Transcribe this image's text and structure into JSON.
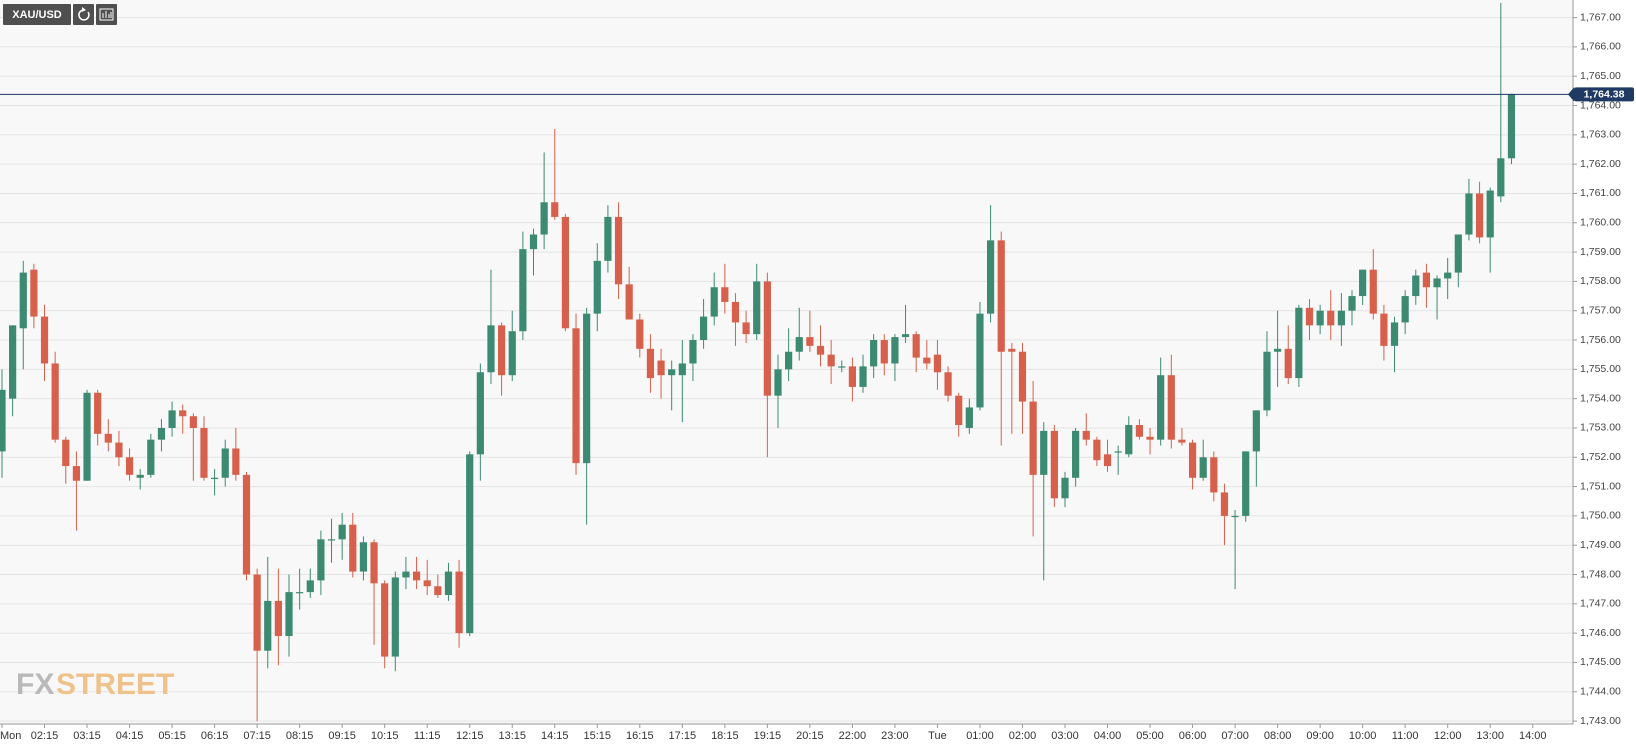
{
  "symbol": "XAU/USD",
  "watermark": {
    "prefix": "FX",
    "suffix": "STREET"
  },
  "chart_data": {
    "type": "candlestick",
    "up_color": "#3b8a71",
    "down_color": "#d6604b",
    "grid": true,
    "categories": [
      "Mon",
      null,
      null,
      null,
      "02:15",
      null,
      null,
      null,
      "03:15",
      null,
      null,
      null,
      "04:15",
      null,
      null,
      null,
      "05:15",
      null,
      null,
      null,
      "06:15",
      null,
      null,
      null,
      "07:15",
      null,
      null,
      null,
      "08:15",
      null,
      null,
      null,
      "09:15",
      null,
      null,
      null,
      "10:15",
      null,
      null,
      null,
      "11:15",
      null,
      null,
      null,
      "12:15",
      null,
      null,
      null,
      "13:15",
      null,
      null,
      null,
      "14:15",
      null,
      null,
      null,
      "15:15",
      null,
      null,
      null,
      "16:15",
      null,
      null,
      null,
      "17:15",
      null,
      null,
      null,
      "18:15",
      null,
      null,
      null,
      "19:15",
      null,
      null,
      null,
      "20:15",
      null,
      null,
      null,
      "22:00",
      null,
      null,
      null,
      "23:00",
      null,
      null,
      null,
      "Tue",
      null,
      null,
      null,
      "01:00",
      null,
      null,
      null,
      "02:00",
      null,
      null,
      null,
      "03:00",
      null,
      null,
      null,
      "04:00",
      null,
      null,
      null,
      "05:00",
      null,
      null,
      null,
      "06:00",
      null,
      null,
      null,
      "07:00",
      null,
      null,
      null,
      "08:00",
      null,
      null,
      null,
      "09:00",
      null,
      null,
      null,
      "10:00",
      null,
      null,
      null,
      "11:00",
      null,
      null,
      null,
      "12:00",
      null,
      null,
      null,
      "13:00",
      null,
      null,
      null,
      "14:00"
    ],
    "open": [
      1752.2,
      1754,
      1756.4,
      1758.4,
      1756.8,
      1755.2,
      1752.6,
      1751.7,
      1751.2,
      1754.2,
      1752.8,
      1752.5,
      1752,
      1751.3,
      1751.4,
      1752.6,
      1753,
      1753.6,
      1753.4,
      1753,
      1751.3,
      1751.3,
      1752.3,
      1751.4,
      1748,
      1745.4,
      1747.1,
      1745.9,
      1747.4,
      1747.4,
      1747.8,
      1749.2,
      1749.2,
      1749.7,
      1748.1,
      1749.1,
      1747.7,
      1745.2,
      1747.9,
      1748.1,
      1747.8,
      1747.6,
      1747.3,
      1748.1,
      1746,
      1752.1,
      1754.9,
      1756.5,
      1754.8,
      1756.3,
      1759.1,
      1759.6,
      1760.7,
      1760.2,
      1756.4,
      1751.8,
      1756.9,
      1758.7,
      1760.2,
      1757.9,
      1756.7,
      1755.7,
      1755.3,
      1754.8,
      1754.8,
      1755.2,
      1756,
      1756.8,
      1757.8,
      1757.3,
      1756.6,
      1756.2,
      1758,
      1754.1,
      1755,
      1755.6,
      1756.1,
      1755.8,
      1755.5,
      1755.1,
      1755.1,
      1754.4,
      1755.1,
      1756,
      1755.2,
      1756.1,
      1756.2,
      1755.4,
      1755.5,
      1754.9,
      1754.1,
      1753,
      1753.7,
      1756.9,
      1759.4,
      1755.7,
      1755.6,
      1753.9,
      1751.4,
      1752.9,
      1750.6,
      1751.3,
      1752.9,
      1752.6,
      1752.1,
      1752.2,
      1752.1,
      1753.1,
      1752.7,
      1752.6,
      1754.8,
      1752.6,
      1752.5,
      1751.3,
      1752,
      1750.8,
      1750,
      1750,
      1752.2,
      1753.6,
      1755.6,
      1755.7,
      1754.7,
      1757.1,
      1756.5,
      1757,
      1756.5,
      1757,
      1757.5,
      1758.4,
      1756.9,
      1755.8,
      1756.6,
      1757.5,
      1758.3,
      1757.8,
      1758.1,
      1758.3,
      1759.6,
      1761,
      1759.5,
      1760.9,
      1762.2,
      null,
      null
    ],
    "high": [
      1755,
      1756.5,
      1758.7,
      1758.6,
      1757.2,
      1755.6,
      1752.7,
      1752.2,
      1754.3,
      1754.3,
      1753.3,
      1752.9,
      1752.3,
      1751.6,
      1752.8,
      1753.3,
      1753.9,
      1753.8,
      1753.5,
      1753.4,
      1751.6,
      1752.6,
      1753,
      1751.5,
      1748.2,
      1748.6,
      1748.2,
      1748,
      1748.2,
      1748.2,
      1749.5,
      1749.9,
      1750.1,
      1750.1,
      1749.3,
      1749.2,
      1747.8,
      1748.1,
      1748.6,
      1748.6,
      1748.5,
      1748,
      1748.4,
      1748.5,
      1752.2,
      1755.2,
      1758.4,
      1756.6,
      1757,
      1759.7,
      1759.8,
      1762.4,
      1763.2,
      1760.3,
      1756.9,
      1757.1,
      1759.3,
      1760.6,
      1760.7,
      1758.5,
      1756.9,
      1756.2,
      1755.7,
      1755.3,
      1756,
      1756.2,
      1757.4,
      1758.3,
      1758.6,
      1757.6,
      1757,
      1758.6,
      1758.3,
      1755.5,
      1756.4,
      1757.1,
      1757,
      1756.5,
      1756,
      1755.3,
      1755.4,
      1755.5,
      1756.2,
      1756.2,
      1756.2,
      1757.2,
      1756.3,
      1756,
      1756,
      1755.1,
      1754.2,
      1754,
      1757.3,
      1760.6,
      1759.7,
      1755.9,
      1755.9,
      1754.6,
      1753.2,
      1753.1,
      1751.5,
      1753,
      1753.5,
      1752.7,
      1752.6,
      1752.4,
      1753.4,
      1753.3,
      1753,
      1755.4,
      1755.5,
      1753,
      1752.6,
      1752.6,
      1752.2,
      1751.1,
      1750.2,
      1752.2,
      1753.6,
      1756.3,
      1757,
      1756.5,
      1757.2,
      1757.4,
      1757.2,
      1757.7,
      1757.6,
      1757.7,
      1758.4,
      1759.1,
      1757.2,
      1756.8,
      1757.7,
      1758.4,
      1758.6,
      1758.2,
      1758.8,
      1759.6,
      1761.5,
      1761.4,
      1761.2,
      1767.5,
      1764.4,
      null,
      null
    ],
    "low": [
      1751.3,
      1753.4,
      1755,
      1756.4,
      1754.6,
      1752.5,
      1751.1,
      1749.5,
      1751.2,
      1752.4,
      1752.2,
      1751.7,
      1751.2,
      1750.9,
      1751.3,
      1752.2,
      1752.7,
      1752.8,
      1751.2,
      1751.2,
      1750.7,
      1751,
      1751.2,
      1747.8,
      1743,
      1744.8,
      1744.9,
      1745.2,
      1746.8,
      1747.2,
      1747.3,
      1748.4,
      1748.5,
      1747.9,
      1747.8,
      1745.6,
      1744.8,
      1744.7,
      1747.5,
      1747.5,
      1747.3,
      1747.2,
      1747.1,
      1745.5,
      1745.9,
      1751.2,
      1754.5,
      1754.1,
      1754.6,
      1756,
      1758.2,
      1759.1,
      1760.1,
      1756.3,
      1751.4,
      1749.7,
      1756.3,
      1758.3,
      1757.4,
      1756.7,
      1755.4,
      1754.2,
      1754,
      1753.6,
      1753.2,
      1754.6,
      1755.7,
      1756.5,
      1756.9,
      1755.8,
      1755.9,
      1756,
      1752,
      1753,
      1754.6,
      1755.3,
      1755.6,
      1755.1,
      1754.5,
      1754.9,
      1753.9,
      1754.2,
      1754.7,
      1754.8,
      1754.6,
      1755.9,
      1754.9,
      1755,
      1754.3,
      1753.9,
      1752.7,
      1752.8,
      1753.6,
      1756.6,
      1752.4,
      1752.8,
      1752.8,
      1749.3,
      1747.8,
      1750.3,
      1750.3,
      1751,
      1752.4,
      1751.7,
      1751.5,
      1751.4,
      1752,
      1752.6,
      1752.1,
      1752.4,
      1752.3,
      1752.4,
      1750.9,
      1751.2,
      1750.5,
      1749,
      1747.5,
      1749.8,
      1751,
      1753.4,
      1754.4,
      1754.5,
      1754.4,
      1756,
      1756.2,
      1756,
      1755.8,
      1756.5,
      1757.2,
      1756.7,
      1755.3,
      1754.9,
      1756.2,
      1757.2,
      1757.1,
      1756.7,
      1757.4,
      1757.8,
      1759.4,
      1759.3,
      1758.3,
      1760.7,
      1762,
      null,
      null
    ],
    "close": [
      1754.3,
      1756.5,
      1758.3,
      1756.8,
      1755.2,
      1752.6,
      1751.7,
      1751.2,
      1754.2,
      1752.8,
      1752.5,
      1752,
      1751.4,
      1751.4,
      1752.6,
      1753,
      1753.6,
      1753.4,
      1753,
      1751.3,
      1751.3,
      1752.3,
      1751.4,
      1748,
      1745.4,
      1747.1,
      1745.9,
      1747.4,
      1747.4,
      1747.8,
      1749.2,
      1749.2,
      1749.7,
      1748.1,
      1749.1,
      1747.7,
      1745.2,
      1747.9,
      1748.1,
      1747.8,
      1747.6,
      1747.3,
      1748.1,
      1746,
      1752.1,
      1754.9,
      1756.5,
      1754.8,
      1756.3,
      1759.1,
      1759.6,
      1760.7,
      1760.2,
      1756.4,
      1751.8,
      1756.9,
      1758.7,
      1760.2,
      1757.9,
      1756.7,
      1755.7,
      1754.7,
      1754.8,
      1755,
      1755.2,
      1756,
      1756.8,
      1757.8,
      1757.3,
      1756.6,
      1756.2,
      1758,
      1754.1,
      1755,
      1755.6,
      1756.1,
      1755.8,
      1755.5,
      1755.1,
      1755.1,
      1754.4,
      1755.1,
      1756,
      1755.2,
      1756.1,
      1756.2,
      1755.4,
      1755.2,
      1754.9,
      1754.1,
      1753.1,
      1753.7,
      1756.9,
      1759.4,
      1755.6,
      1755.6,
      1753.9,
      1751.4,
      1752.9,
      1750.6,
      1751.3,
      1752.9,
      1752.6,
      1751.9,
      1751.7,
      1752.2,
      1753.1,
      1752.7,
      1752.6,
      1754.8,
      1752.6,
      1752.5,
      1751.3,
      1752,
      1750.8,
      1750,
      1750,
      1752.2,
      1753.6,
      1755.6,
      1755.7,
      1754.7,
      1757.1,
      1756.5,
      1757,
      1756.5,
      1757,
      1757.5,
      1758.4,
      1756.9,
      1755.8,
      1756.6,
      1757.5,
      1758.2,
      1757.8,
      1758.1,
      1758.3,
      1759.6,
      1761,
      1759.5,
      1761.1,
      1762.2,
      1764.38,
      null,
      null
    ],
    "last_price": {
      "value": 1764.38,
      "label": "1,764.38"
    },
    "ylim": [
      1742.9,
      1767.6
    ],
    "yticks": [
      {
        "value": 1743,
        "label": "1,743.00"
      },
      {
        "value": 1744,
        "label": "1,744.00"
      },
      {
        "value": 1745,
        "label": "1,745.00"
      },
      {
        "value": 1746,
        "label": "1,746.00"
      },
      {
        "value": 1747,
        "label": "1,747.00"
      },
      {
        "value": 1748,
        "label": "1,748.00"
      },
      {
        "value": 1749,
        "label": "1,749.00"
      },
      {
        "value": 1750,
        "label": "1,750.00"
      },
      {
        "value": 1751,
        "label": "1,751.00"
      },
      {
        "value": 1752,
        "label": "1,752.00"
      },
      {
        "value": 1753,
        "label": "1,753.00"
      },
      {
        "value": 1754,
        "label": "1,754.00"
      },
      {
        "value": 1755,
        "label": "1,755.00"
      },
      {
        "value": 1756,
        "label": "1,756.00"
      },
      {
        "value": 1757,
        "label": "1,757.00"
      },
      {
        "value": 1758,
        "label": "1,758.00"
      },
      {
        "value": 1759,
        "label": "1,759.00"
      },
      {
        "value": 1760,
        "label": "1,760.00"
      },
      {
        "value": 1761,
        "label": "1,761.00"
      },
      {
        "value": 1762,
        "label": "1,762.00"
      },
      {
        "value": 1763,
        "label": "1,763.00"
      },
      {
        "value": 1764,
        "label": "1,764.00"
      },
      {
        "value": 1765,
        "label": "1,765.00"
      },
      {
        "value": 1766,
        "label": "1,766.00"
      },
      {
        "value": 1767,
        "label": "1,767.00"
      }
    ]
  }
}
